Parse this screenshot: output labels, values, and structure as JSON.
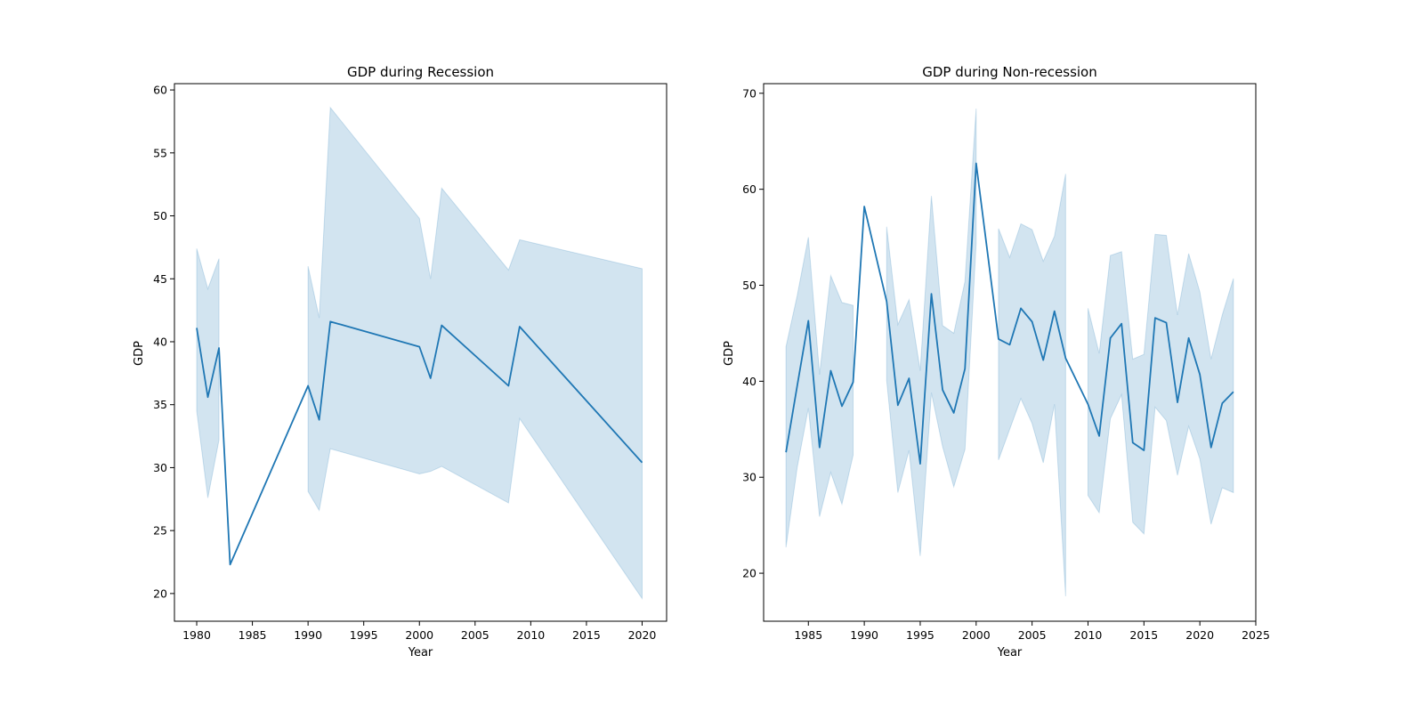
{
  "colors": {
    "line": "#1f77b4",
    "band": "#1f77b4",
    "band_opacity": 0.2
  },
  "chart_data": [
    {
      "type": "line",
      "title": "GDP during Recession",
      "xlabel": "Year",
      "ylabel": "GDP",
      "xlim": [
        1978,
        2022.2
      ],
      "ylim": [
        17.8,
        60.5
      ],
      "xticks": [
        1980,
        1985,
        1990,
        1995,
        2000,
        2005,
        2010,
        2015,
        2020
      ],
      "yticks": [
        20,
        25,
        30,
        35,
        40,
        45,
        50,
        55,
        60
      ],
      "grid": false,
      "legend": "none",
      "series": [
        {
          "x": [
            1980,
            1981,
            1982,
            1983,
            1990,
            1991,
            1992,
            2000,
            2001,
            2002,
            2008,
            2009,
            2020
          ],
          "y": [
            41.1,
            35.6,
            39.5,
            22.3,
            36.5,
            33.8,
            41.6,
            39.6,
            37.1,
            41.3,
            36.5,
            41.2,
            30.4
          ],
          "lower": [
            34.5,
            27.6,
            32.2,
            null,
            28.1,
            26.6,
            31.5,
            29.5,
            29.7,
            30.1,
            27.2,
            33.9,
            19.6
          ],
          "upper": [
            47.4,
            44.2,
            46.6,
            null,
            46.0,
            41.9,
            58.6,
            49.8,
            45.0,
            52.2,
            45.7,
            48.1,
            45.8
          ]
        }
      ]
    },
    {
      "type": "line",
      "title": "GDP during Non-recession",
      "xlabel": "Year",
      "ylabel": "GDP",
      "xlim": [
        1981,
        2025
      ],
      "ylim": [
        15,
        71
      ],
      "xticks": [
        1985,
        1990,
        1995,
        2000,
        2005,
        2010,
        2015,
        2020,
        2025
      ],
      "yticks": [
        20,
        30,
        40,
        50,
        60,
        70
      ],
      "grid": false,
      "legend": "none",
      "series": [
        {
          "x": [
            1983,
            1984,
            1985,
            1986,
            1987,
            1988,
            1989,
            1990,
            1991,
            1992,
            1993,
            1994,
            1995,
            1996,
            1997,
            1998,
            1999,
            2000,
            2001,
            2002,
            2003,
            2004,
            2005,
            2006,
            2007,
            2008,
            2009,
            2010,
            2011,
            2012,
            2013,
            2014,
            2015,
            2016,
            2017,
            2018,
            2019,
            2020,
            2021,
            2022,
            2023
          ],
          "y": [
            32.6,
            39.5,
            46.3,
            33.1,
            41.1,
            37.4,
            39.9,
            58.2,
            null,
            48.3,
            37.5,
            40.3,
            31.4,
            49.1,
            39.1,
            36.7,
            41.3,
            62.7,
            null,
            44.4,
            43.8,
            47.6,
            46.2,
            42.2,
            47.3,
            42.4,
            null,
            37.6,
            34.3,
            44.5,
            46.0,
            33.6,
            32.8,
            46.6,
            46.1,
            37.8,
            44.5,
            40.7,
            33.1,
            37.7,
            38.9
          ],
          "lower": [
            22.7,
            31.0,
            37.2,
            25.9,
            30.5,
            27.2,
            32.3,
            null,
            null,
            40.1,
            28.4,
            32.8,
            21.8,
            38.8,
            33.2,
            29.0,
            32.9,
            54.4,
            null,
            31.8,
            35.0,
            38.2,
            35.6,
            31.5,
            37.6,
            17.6,
            null,
            28.1,
            26.3,
            36.1,
            38.6,
            25.3,
            24.1,
            37.3,
            35.9,
            30.2,
            35.3,
            31.9,
            25.1,
            28.9,
            28.4
          ],
          "upper": [
            43.6,
            48.9,
            55.0,
            40.7,
            51.0,
            48.2,
            47.9,
            null,
            null,
            56.1,
            45.9,
            48.5,
            41.1,
            59.3,
            45.8,
            45.0,
            50.4,
            68.4,
            null,
            55.9,
            52.9,
            56.4,
            55.8,
            52.5,
            55.1,
            61.6,
            null,
            47.6,
            42.9,
            53.1,
            53.5,
            42.3,
            42.8,
            55.3,
            55.2,
            46.9,
            53.3,
            49.3,
            42.3,
            46.9,
            50.7
          ]
        }
      ]
    }
  ]
}
